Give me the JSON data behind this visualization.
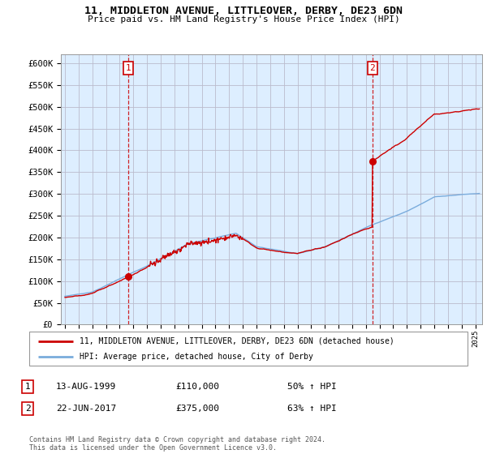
{
  "title": "11, MIDDLETON AVENUE, LITTLEOVER, DERBY, DE23 6DN",
  "subtitle": "Price paid vs. HM Land Registry's House Price Index (HPI)",
  "ylabel_ticks": [
    "£0",
    "£50K",
    "£100K",
    "£150K",
    "£200K",
    "£250K",
    "£300K",
    "£350K",
    "£400K",
    "£450K",
    "£500K",
    "£550K",
    "£600K"
  ],
  "ytick_values": [
    0,
    50000,
    100000,
    150000,
    200000,
    250000,
    300000,
    350000,
    400000,
    450000,
    500000,
    550000,
    600000
  ],
  "xlim_start": 1994.7,
  "xlim_end": 2025.5,
  "ylim_min": 0,
  "ylim_max": 620000,
  "sale1_year": 1999.62,
  "sale1_price": 110000,
  "sale2_year": 2017.47,
  "sale2_price": 375000,
  "legend_line1": "11, MIDDLETON AVENUE, LITTLEOVER, DERBY, DE23 6DN (detached house)",
  "legend_line2": "HPI: Average price, detached house, City of Derby",
  "table_row1_date": "13-AUG-1999",
  "table_row1_price": "£110,000",
  "table_row1_hpi": "50% ↑ HPI",
  "table_row2_date": "22-JUN-2017",
  "table_row2_price": "£375,000",
  "table_row2_hpi": "63% ↑ HPI",
  "footnote": "Contains HM Land Registry data © Crown copyright and database right 2024.\nThis data is licensed under the Open Government Licence v3.0.",
  "red_line_color": "#cc0000",
  "blue_line_color": "#7aacdc",
  "chart_bg_color": "#ddeeff",
  "background_color": "#ffffff",
  "grid_color": "#bbbbcc",
  "dashed_color": "#cc0000",
  "label_box_color": "#cc0000"
}
